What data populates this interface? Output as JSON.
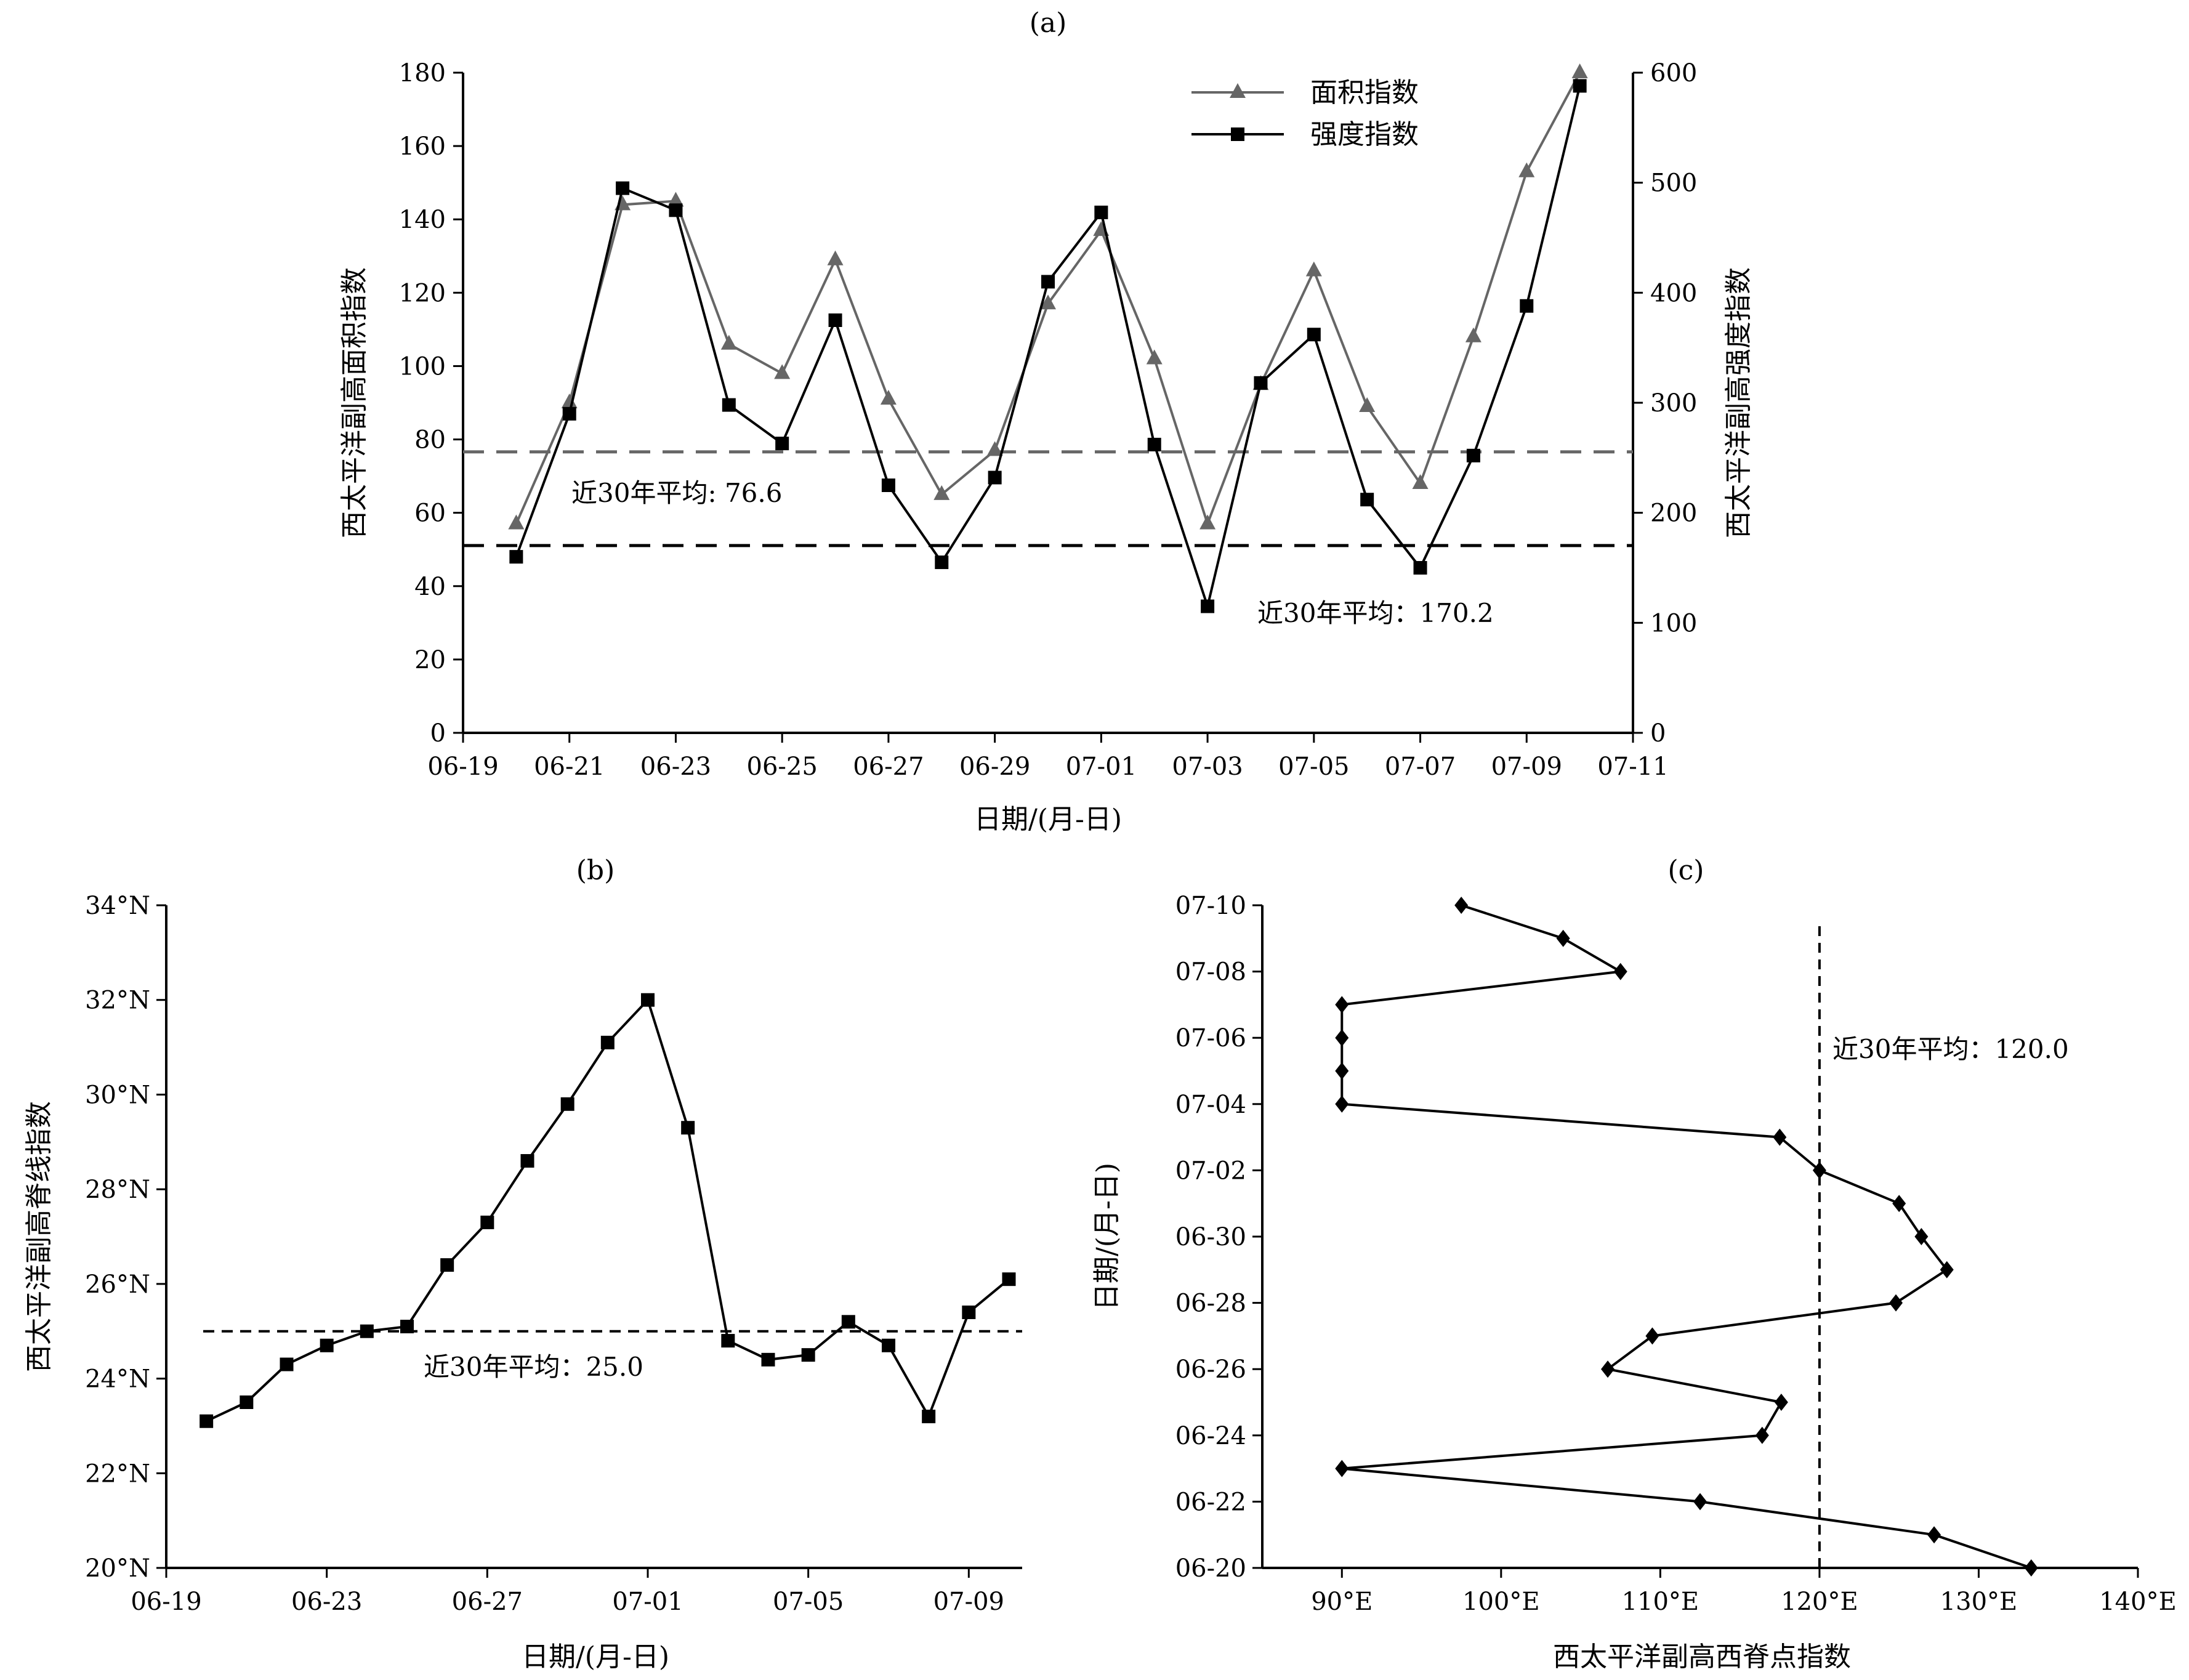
{
  "chart_data": [
    {
      "panel": "(a)",
      "type": "line",
      "title": "(a)",
      "xlabel": "日期/(月-日)",
      "ylabel": "西太平洋副高面积指数",
      "ylabel_right": "西太平洋副高强度指数",
      "xticks": [
        "06-19",
        "06-21",
        "06-23",
        "06-25",
        "06-27",
        "06-29",
        "07-01",
        "07-03",
        "07-05",
        "07-07",
        "07-09",
        "07-11"
      ],
      "ylim": [
        0,
        180
      ],
      "yticks": [
        "0",
        "20",
        "40",
        "60",
        "80",
        "100",
        "120",
        "140",
        "160",
        "180"
      ],
      "ylim_right": [
        0,
        600
      ],
      "yticks_right": [
        "0",
        "100",
        "200",
        "300",
        "400",
        "500",
        "600"
      ],
      "x": [
        "06-20",
        "06-21",
        "06-22",
        "06-23",
        "06-24",
        "06-25",
        "06-26",
        "06-27",
        "06-28",
        "06-29",
        "06-30",
        "07-01",
        "07-02",
        "07-03",
        "07-04",
        "07-05",
        "07-06",
        "07-07",
        "07-08",
        "07-09",
        "07-10"
      ],
      "series": [
        {
          "name": "面积指数",
          "axis": "left",
          "marker": "triangle",
          "color": "#666666",
          "values": [
            57,
            90,
            144,
            145,
            106,
            98,
            129,
            91,
            65,
            77,
            117,
            137,
            102,
            57,
            95,
            126,
            89,
            68,
            108,
            153,
            180
          ]
        },
        {
          "name": "强度指数",
          "axis": "right",
          "marker": "square",
          "color": "#000000",
          "values": [
            160,
            290,
            495,
            475,
            298,
            263,
            375,
            225,
            155,
            232,
            410,
            473,
            262,
            115,
            318,
            362,
            212,
            150,
            252,
            388,
            588
          ]
        }
      ],
      "reference_lines": [
        {
          "axis": "left",
          "value": 76.6,
          "color": "#666666",
          "label": "近30年平均: 76.6"
        },
        {
          "axis": "right",
          "value": 170.2,
          "color": "#000000",
          "label": "近30年平均：170.2"
        }
      ],
      "legend": "top-right"
    },
    {
      "panel": "(b)",
      "type": "line",
      "title": "(b)",
      "xlabel": "日期/(月-日)",
      "ylabel": "西太平洋副高脊线指数",
      "xticks": [
        "06-19",
        "06-23",
        "06-27",
        "07-01",
        "07-05",
        "07-09"
      ],
      "ylim": [
        20,
        34
      ],
      "yticks": [
        "20°N",
        "22°N",
        "24°N",
        "26°N",
        "28°N",
        "30°N",
        "32°N",
        "34°N"
      ],
      "x": [
        "06-20",
        "06-21",
        "06-22",
        "06-23",
        "06-24",
        "06-25",
        "06-26",
        "06-27",
        "06-28",
        "06-29",
        "06-30",
        "07-01",
        "07-02",
        "07-03",
        "07-04",
        "07-05",
        "07-06",
        "07-07",
        "07-08",
        "07-09",
        "07-10"
      ],
      "series": [
        {
          "marker": "square",
          "color": "#000000",
          "values": [
            23.1,
            23.5,
            24.3,
            24.7,
            25.0,
            25.1,
            26.4,
            27.3,
            28.6,
            29.8,
            31.1,
            32.0,
            29.3,
            24.8,
            24.4,
            24.5,
            25.2,
            24.7,
            23.2,
            25.4,
            26.1
          ]
        }
      ],
      "reference_lines": [
        {
          "value": 25.0,
          "color": "#000000",
          "label": "近30年平均：25.0"
        }
      ]
    },
    {
      "panel": "(c)",
      "type": "line",
      "title": "(c)",
      "xlabel": "西太平洋副高西脊点指数",
      "ylabel": "日期/(月-日)",
      "xlim": [
        85,
        140
      ],
      "xticks": [
        "90°E",
        "100°E",
        "110°E",
        "120°E",
        "130°E",
        "140°E"
      ],
      "yticks": [
        "06-20",
        "06-22",
        "06-24",
        "06-26",
        "06-28",
        "06-30",
        "07-02",
        "07-04",
        "07-06",
        "07-08",
        "07-10"
      ],
      "y": [
        "06-20",
        "06-21",
        "06-22",
        "06-23",
        "06-24",
        "06-25",
        "06-26",
        "06-27",
        "06-28",
        "06-29",
        "06-30",
        "07-01",
        "07-02",
        "07-03",
        "07-04",
        "07-05",
        "07-06",
        "07-07",
        "07-08",
        "07-09",
        "07-10"
      ],
      "series": [
        {
          "marker": "diamond",
          "color": "#000000",
          "values": [
            133.3,
            127.2,
            112.5,
            90.0,
            116.4,
            117.6,
            106.7,
            109.5,
            124.8,
            128.0,
            126.4,
            125.0,
            120.0,
            117.5,
            90.0,
            90.0,
            90.0,
            90.0,
            107.5,
            103.9,
            97.5
          ]
        }
      ],
      "reference_lines": [
        {
          "value": 120.0,
          "color": "#000000",
          "label": "近30年平均：120.0"
        }
      ]
    }
  ]
}
